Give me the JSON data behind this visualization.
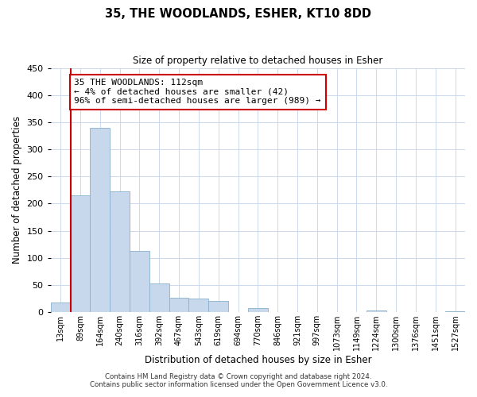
{
  "title": "35, THE WOODLANDS, ESHER, KT10 8DD",
  "subtitle": "Size of property relative to detached houses in Esher",
  "xlabel": "Distribution of detached houses by size in Esher",
  "ylabel": "Number of detached properties",
  "bar_labels": [
    "13sqm",
    "89sqm",
    "164sqm",
    "240sqm",
    "316sqm",
    "392sqm",
    "467sqm",
    "543sqm",
    "619sqm",
    "694sqm",
    "770sqm",
    "846sqm",
    "921sqm",
    "997sqm",
    "1073sqm",
    "1149sqm",
    "1224sqm",
    "1300sqm",
    "1376sqm",
    "1451sqm",
    "1527sqm"
  ],
  "bar_values": [
    18,
    215,
    340,
    222,
    113,
    53,
    26,
    25,
    20,
    0,
    8,
    0,
    0,
    0,
    0,
    0,
    3,
    0,
    0,
    0,
    2
  ],
  "bar_color": "#c8d8ec",
  "bar_edge_color": "#8ab0cc",
  "vline_x_index": 1,
  "vline_color": "#cc0000",
  "ylim": [
    0,
    450
  ],
  "yticks": [
    0,
    50,
    100,
    150,
    200,
    250,
    300,
    350,
    400,
    450
  ],
  "annotation_line1": "35 THE WOODLANDS: 112sqm",
  "annotation_line2": "← 4% of detached houses are smaller (42)",
  "annotation_line3": "96% of semi-detached houses are larger (989) →",
  "annotation_box_color": "#ffffff",
  "annotation_box_edge": "#cc0000",
  "footer1": "Contains HM Land Registry data © Crown copyright and database right 2024.",
  "footer2": "Contains public sector information licensed under the Open Government Licence v3.0.",
  "background_color": "#ffffff",
  "grid_color": "#ccd8ec"
}
